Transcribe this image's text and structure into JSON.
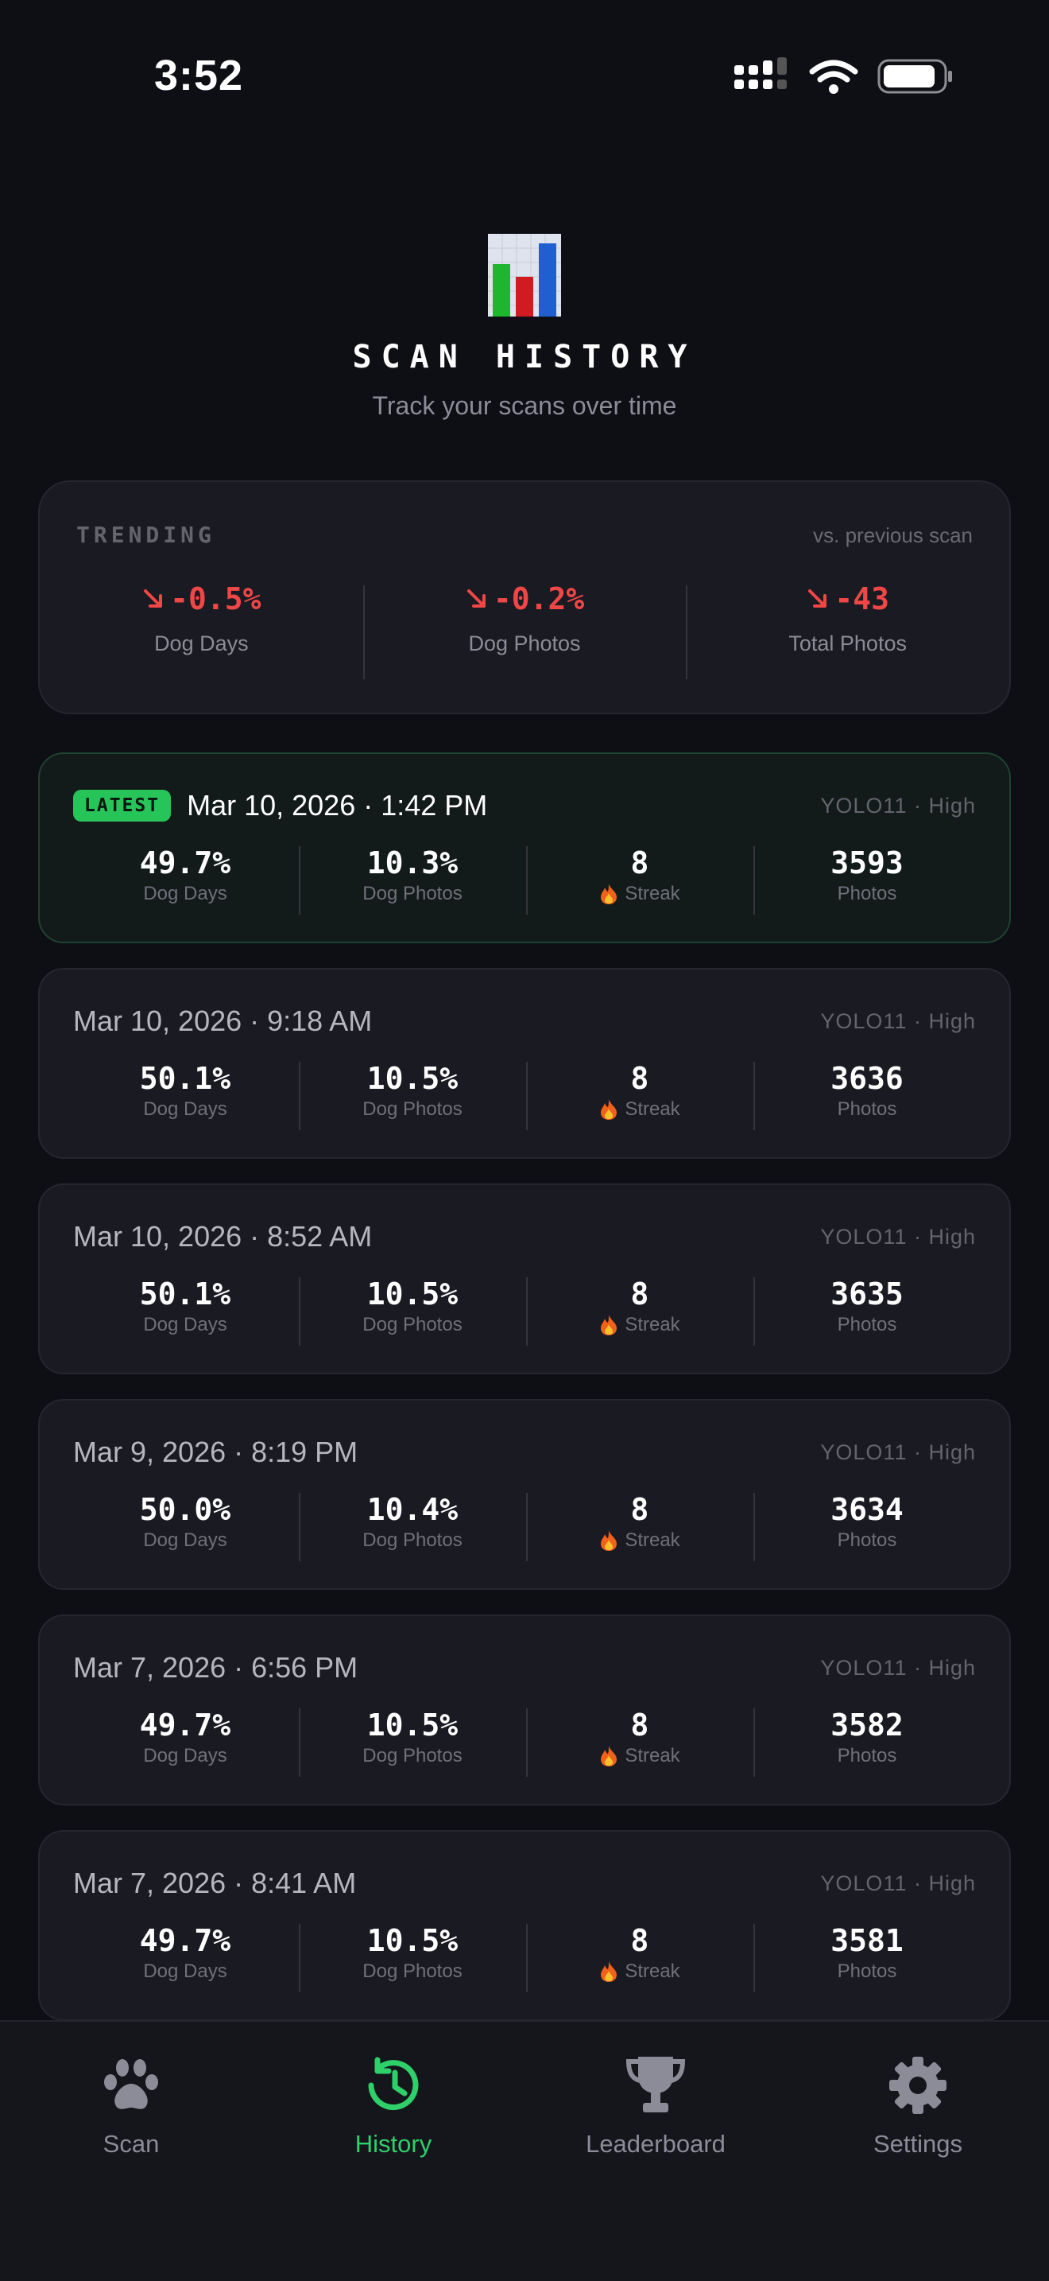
{
  "status_bar": {
    "time": "3:52"
  },
  "header": {
    "title": "SCAN HISTORY",
    "subtitle": "Track your scans over time",
    "icon": "bar-chart-icon"
  },
  "trending": {
    "label": "TRENDING",
    "note": "vs. previous scan",
    "direction_color": "#ef4646",
    "items": [
      {
        "value": "-0.5%",
        "label": "Dog Days"
      },
      {
        "value": "-0.2%",
        "label": "Dog Photos"
      },
      {
        "value": "-43",
        "label": "Total Photos"
      }
    ]
  },
  "stat_labels": {
    "dog_days": "Dog Days",
    "dog_photos": "Dog Photos",
    "streak": "Streak",
    "photos": "Photos"
  },
  "scans": [
    {
      "badge": "LATEST",
      "date": "Mar 10, 2026 · 1:42 PM",
      "model": "YOLO11 · High",
      "dog_days": "49.7%",
      "dog_photos": "10.3%",
      "streak": "8",
      "photos": "3593"
    },
    {
      "date": "Mar 10, 2026 · 9:18 AM",
      "model": "YOLO11 · High",
      "dog_days": "50.1%",
      "dog_photos": "10.5%",
      "streak": "8",
      "photos": "3636"
    },
    {
      "date": "Mar 10, 2026 · 8:52 AM",
      "model": "YOLO11 · High",
      "dog_days": "50.1%",
      "dog_photos": "10.5%",
      "streak": "8",
      "photos": "3635"
    },
    {
      "date": "Mar 9, 2026 · 8:19 PM",
      "model": "YOLO11 · High",
      "dog_days": "50.0%",
      "dog_photos": "10.4%",
      "streak": "8",
      "photos": "3634"
    },
    {
      "date": "Mar 7, 2026 · 6:56 PM",
      "model": "YOLO11 · High",
      "dog_days": "49.7%",
      "dog_photos": "10.5%",
      "streak": "8",
      "photos": "3582"
    },
    {
      "date": "Mar 7, 2026 · 8:41 AM",
      "model": "YOLO11 · High",
      "dog_days": "49.7%",
      "dog_photos": "10.5%",
      "streak": "8",
      "photos": "3581"
    }
  ],
  "tabs": [
    {
      "label": "Scan",
      "icon": "paw-icon"
    },
    {
      "label": "History",
      "icon": "history-icon",
      "active": true
    },
    {
      "label": "Leaderboard",
      "icon": "trophy-icon"
    },
    {
      "label": "Settings",
      "icon": "gear-icon"
    }
  ],
  "colors": {
    "accent": "#2ed06a",
    "badge": "#27c45a",
    "negative": "#ef4646",
    "background": "#0e0e15"
  }
}
